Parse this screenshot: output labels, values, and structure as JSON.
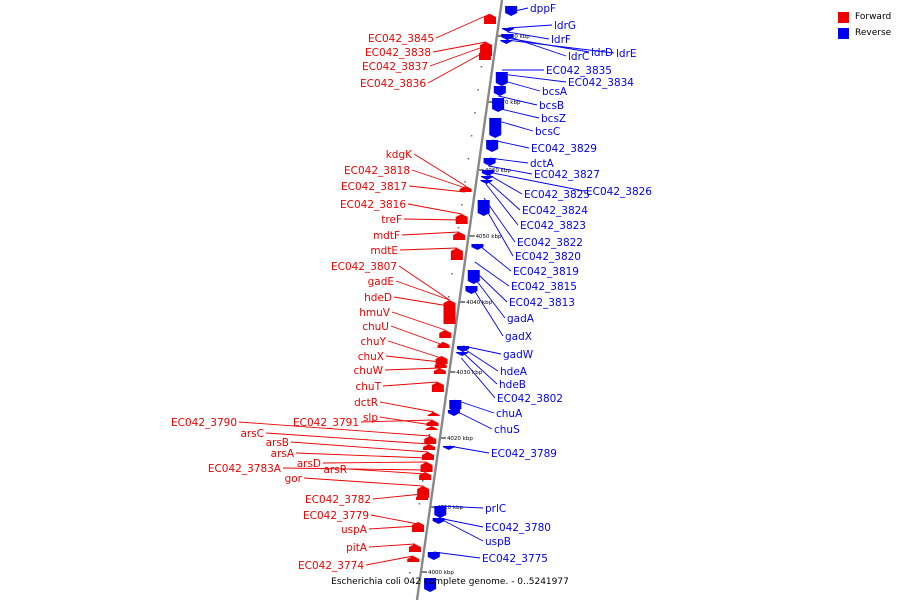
{
  "caption": "Escherichia coli 042 complete genome. - 0..5241977",
  "colors": {
    "forward": "#ee0000",
    "reverse": "#0000ee",
    "backbone": "#888888"
  },
  "legend": [
    {
      "label": "Forward",
      "strand": "forward"
    },
    {
      "label": "Reverse",
      "strand": "reverse"
    }
  ],
  "scale_ticks": [
    "4000 kbp",
    "4010 kbp",
    "4020 kbp",
    "4030 kbp",
    "4040 kbp",
    "4050 kbp",
    "4060 kbp",
    "4070 kbp",
    "4080 kbp"
  ],
  "genes": [
    {
      "name": "EC042_3845",
      "strand": "forward"
    },
    {
      "name": "EC042_3838",
      "strand": "forward"
    },
    {
      "name": "EC042_3837",
      "strand": "forward"
    },
    {
      "name": "EC042_3836",
      "strand": "forward"
    },
    {
      "name": "kdgK",
      "strand": "forward"
    },
    {
      "name": "EC042_3818",
      "strand": "forward"
    },
    {
      "name": "EC042_3817",
      "strand": "forward"
    },
    {
      "name": "EC042_3816",
      "strand": "forward"
    },
    {
      "name": "treF",
      "strand": "forward"
    },
    {
      "name": "mdtF",
      "strand": "forward"
    },
    {
      "name": "mdtE",
      "strand": "forward"
    },
    {
      "name": "EC042_3807",
      "strand": "forward"
    },
    {
      "name": "gadE",
      "strand": "forward"
    },
    {
      "name": "hdeD",
      "strand": "forward"
    },
    {
      "name": "hmuV",
      "strand": "forward"
    },
    {
      "name": "chuU",
      "strand": "forward"
    },
    {
      "name": "chuY",
      "strand": "forward"
    },
    {
      "name": "chuX",
      "strand": "forward"
    },
    {
      "name": "chuW",
      "strand": "forward"
    },
    {
      "name": "chuT",
      "strand": "forward"
    },
    {
      "name": "dctR",
      "strand": "forward"
    },
    {
      "name": "EC042_3790",
      "strand": "forward"
    },
    {
      "name": "EC042_3791",
      "strand": "forward"
    },
    {
      "name": "slp",
      "strand": "forward"
    },
    {
      "name": "arsC",
      "strand": "forward"
    },
    {
      "name": "arsB",
      "strand": "forward"
    },
    {
      "name": "arsA",
      "strand": "forward"
    },
    {
      "name": "arsD",
      "strand": "forward"
    },
    {
      "name": "EC042_3783A",
      "strand": "forward"
    },
    {
      "name": "arsR",
      "strand": "forward"
    },
    {
      "name": "gor",
      "strand": "forward"
    },
    {
      "name": "EC042_3782",
      "strand": "forward"
    },
    {
      "name": "EC042_3779",
      "strand": "forward"
    },
    {
      "name": "uspA",
      "strand": "forward"
    },
    {
      "name": "pitA",
      "strand": "forward"
    },
    {
      "name": "EC042_3774",
      "strand": "forward"
    },
    {
      "name": "dppF",
      "strand": "reverse"
    },
    {
      "name": "ldrG",
      "strand": "reverse"
    },
    {
      "name": "ldrF",
      "strand": "reverse"
    },
    {
      "name": "ldrC",
      "strand": "reverse"
    },
    {
      "name": "ldrD",
      "strand": "reverse"
    },
    {
      "name": "ldrE",
      "strand": "reverse"
    },
    {
      "name": "EC042_3835",
      "strand": "reverse"
    },
    {
      "name": "EC042_3834",
      "strand": "reverse"
    },
    {
      "name": "bcsA",
      "strand": "reverse"
    },
    {
      "name": "bcsB",
      "strand": "reverse"
    },
    {
      "name": "bcsZ",
      "strand": "reverse"
    },
    {
      "name": "bcsC",
      "strand": "reverse"
    },
    {
      "name": "EC042_3829",
      "strand": "reverse"
    },
    {
      "name": "dctA",
      "strand": "reverse"
    },
    {
      "name": "EC042_3827",
      "strand": "reverse"
    },
    {
      "name": "EC042_3825",
      "strand": "reverse"
    },
    {
      "name": "EC042_3826",
      "strand": "reverse"
    },
    {
      "name": "EC042_3824",
      "strand": "reverse"
    },
    {
      "name": "EC042_3823",
      "strand": "reverse"
    },
    {
      "name": "EC042_3822",
      "strand": "reverse"
    },
    {
      "name": "EC042_3820",
      "strand": "reverse"
    },
    {
      "name": "EC042_3819",
      "strand": "reverse"
    },
    {
      "name": "EC042_3815",
      "strand": "reverse"
    },
    {
      "name": "EC042_3813",
      "strand": "reverse"
    },
    {
      "name": "gadA",
      "strand": "reverse"
    },
    {
      "name": "gadX",
      "strand": "reverse"
    },
    {
      "name": "gadW",
      "strand": "reverse"
    },
    {
      "name": "hdeA",
      "strand": "reverse"
    },
    {
      "name": "hdeB",
      "strand": "reverse"
    },
    {
      "name": "EC042_3802",
      "strand": "reverse"
    },
    {
      "name": "chuA",
      "strand": "reverse"
    },
    {
      "name": "chuS",
      "strand": "reverse"
    },
    {
      "name": "EC042_3789",
      "strand": "reverse"
    },
    {
      "name": "prlC",
      "strand": "reverse"
    },
    {
      "name": "EC042_3780",
      "strand": "reverse"
    },
    {
      "name": "uspB",
      "strand": "reverse"
    },
    {
      "name": "EC042_3775",
      "strand": "reverse"
    }
  ]
}
